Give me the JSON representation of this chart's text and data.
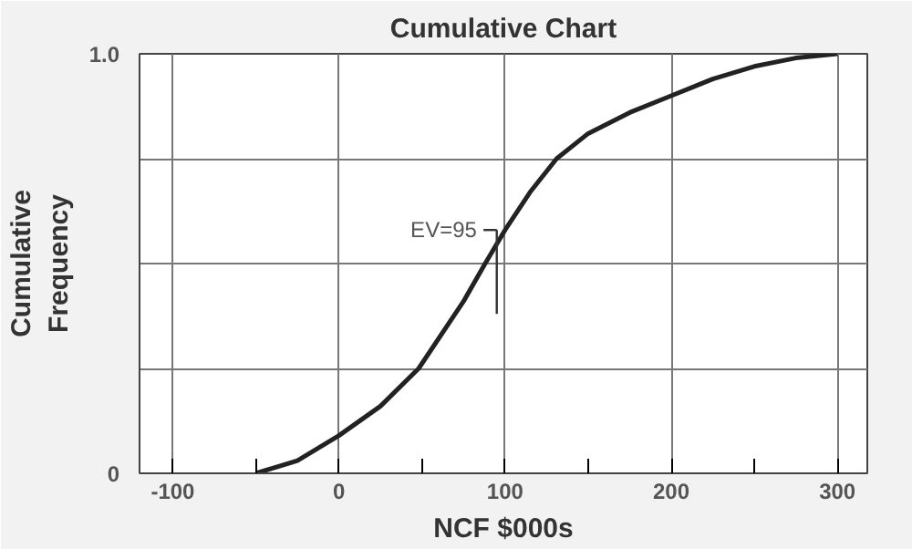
{
  "chart_data": {
    "type": "line",
    "title": "Cumulative Chart",
    "xlabel": "NCF $000s",
    "ylabel": "Cumulative Frequency",
    "x": [
      -50,
      -25,
      0,
      25,
      48,
      75,
      88,
      100,
      115,
      131,
      150,
      175,
      200,
      225,
      250,
      275,
      300
    ],
    "series": [
      {
        "color": "#222222",
        "values": [
          0,
          0.03,
          0.09,
          0.16,
          0.25,
          0.41,
          0.5,
          0.58,
          0.67,
          0.75,
          0.81,
          0.86,
          0.9,
          0.94,
          0.97,
          0.99,
          1.0
        ]
      }
    ],
    "xlim": [
      -120,
      318
    ],
    "ylim": [
      0,
      1.0
    ],
    "xticks": [
      -100,
      {
        "value": -50,
        "label": null
      },
      0,
      {
        "value": 50,
        "label": null
      },
      100,
      {
        "value": 150,
        "label": null
      },
      200,
      {
        "value": 250,
        "label": null
      },
      300
    ],
    "yticks": [
      0,
      {
        "value": 0.25,
        "label": null
      },
      {
        "value": 0.5,
        "label": null
      },
      {
        "value": 0.75,
        "label": null
      },
      {
        "value": 1.0,
        "label": "1.0"
      }
    ],
    "grid": true,
    "marker": "none",
    "line_style": "solid",
    "annotations": [
      {
        "text": "EV=95",
        "x": 95,
        "y": 0.5
      }
    ]
  }
}
